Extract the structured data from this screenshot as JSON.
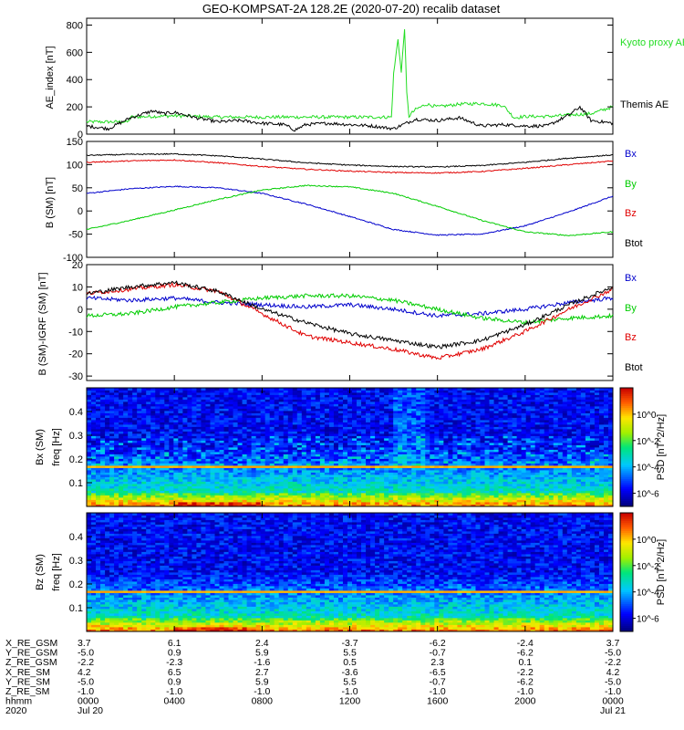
{
  "title": "GEO-KOMPSAT-2A 128.2E (2020-07-20) recalib dataset",
  "colors": {
    "black": "#000000",
    "red": "#e00000",
    "green": "#00cc00",
    "blue": "#0000cc",
    "kyoto": "#22dd22"
  },
  "x_axis": {
    "tick_hours": [
      0,
      4,
      8,
      12,
      16,
      20,
      24
    ],
    "row_labels": [
      "X_RE_GSM",
      "Y_RE_GSM",
      "Z_RE_GSM",
      "X_RE_SM",
      "Y_RE_SM",
      "Z_RE_SM",
      "hhmm",
      "2020"
    ],
    "rows": [
      [
        "3.7",
        "6.1",
        "2.4",
        "-3.7",
        "-6.2",
        "-2.4",
        "3.7"
      ],
      [
        "-5.0",
        "0.9",
        "5.9",
        "5.5",
        "-0.7",
        "-6.2",
        "-5.0"
      ],
      [
        "-2.2",
        "-2.3",
        "-1.6",
        "0.5",
        "2.3",
        "0.1",
        "-2.2"
      ],
      [
        "4.2",
        "6.5",
        "2.7",
        "-3.6",
        "-6.5",
        "-2.2",
        "4.2"
      ],
      [
        "-5.0",
        "0.9",
        "5.9",
        "5.5",
        "-0.7",
        "-6.2",
        "-5.0"
      ],
      [
        "-1.0",
        "-1.0",
        "-1.0",
        "-1.0",
        "-1.0",
        "-1.0",
        "-1.0"
      ],
      [
        "0000",
        "0400",
        "0800",
        "1200",
        "1600",
        "2000",
        "0000"
      ],
      [
        "Jul 20",
        "",
        "",
        "",
        "",
        "",
        "Jul 21"
      ]
    ]
  },
  "chart_data": [
    {
      "type": "line",
      "id": "ae",
      "ylabel": "AE_index [nT]",
      "ylim": [
        0,
        850
      ],
      "yticks": [
        0,
        200,
        400,
        600,
        800
      ],
      "legend": [
        {
          "label": "Kyoto proxy AE",
          "color": "#22dd22"
        },
        {
          "label": "Themis AE",
          "color": "#000000"
        }
      ],
      "series": [
        {
          "name": "Kyoto proxy AE",
          "color": "#22dd22",
          "x": [
            0,
            1,
            1.9,
            2,
            3,
            4,
            5,
            6,
            7,
            8,
            9,
            10,
            11,
            12,
            13,
            13.9,
            14.0,
            14.2,
            14.35,
            14.5,
            14.6,
            14.7,
            14.8,
            15,
            15.5,
            16,
            16.5,
            17,
            18,
            19,
            19.5,
            20,
            21,
            22,
            23,
            24
          ],
          "y": [
            90,
            90,
            90,
            125,
            130,
            135,
            130,
            125,
            125,
            125,
            125,
            125,
            125,
            125,
            125,
            125,
            440,
            700,
            450,
            780,
            300,
            130,
            150,
            180,
            220,
            200,
            210,
            220,
            225,
            210,
            120,
            130,
            130,
            140,
            150,
            200
          ]
        },
        {
          "name": "Themis AE",
          "color": "#000000",
          "x": [
            0,
            1,
            2,
            3,
            3.5,
            4,
            4.5,
            5,
            6,
            7,
            8,
            9,
            9.5,
            10,
            11,
            12,
            13,
            14,
            15,
            16,
            17,
            18,
            19,
            20,
            21,
            22,
            22.5,
            23,
            24
          ],
          "y": [
            60,
            40,
            120,
            170,
            150,
            160,
            140,
            120,
            90,
            100,
            80,
            70,
            30,
            70,
            80,
            70,
            60,
            40,
            110,
            100,
            120,
            60,
            70,
            60,
            60,
            140,
            200,
            100,
            80
          ]
        }
      ]
    },
    {
      "type": "line",
      "id": "bsm",
      "ylabel": "B (SM) [nT]",
      "ylim": [
        -100,
        150
      ],
      "yticks": [
        -100,
        -50,
        0,
        50,
        100,
        150
      ],
      "legend": [
        {
          "label": "Bx",
          "color": "#0000cc"
        },
        {
          "label": "By",
          "color": "#00cc00"
        },
        {
          "label": "Bz",
          "color": "#e00000"
        },
        {
          "label": "Btot",
          "color": "#000000"
        }
      ],
      "series": [
        {
          "name": "Bx",
          "color": "#0000cc",
          "x": [
            0,
            2,
            4,
            6,
            8,
            10,
            12,
            14,
            16,
            18,
            20,
            22,
            24
          ],
          "y": [
            38,
            48,
            53,
            50,
            38,
            15,
            -12,
            -40,
            -52,
            -50,
            -32,
            -2,
            32
          ]
        },
        {
          "name": "By",
          "color": "#00cc00",
          "x": [
            0,
            2,
            4,
            6,
            8,
            10,
            12,
            14,
            16,
            18,
            20,
            22,
            24
          ],
          "y": [
            -40,
            -20,
            2,
            25,
            45,
            55,
            52,
            38,
            10,
            -20,
            -45,
            -53,
            -45
          ]
        },
        {
          "name": "Bz",
          "color": "#e00000",
          "x": [
            0,
            2,
            4,
            6,
            8,
            10,
            12,
            14,
            16,
            18,
            20,
            22,
            24
          ],
          "y": [
            105,
            108,
            110,
            104,
            96,
            90,
            86,
            83,
            82,
            85,
            92,
            100,
            108
          ]
        },
        {
          "name": "Btot",
          "color": "#000000",
          "x": [
            0,
            2,
            4,
            6,
            8,
            10,
            12,
            14,
            16,
            18,
            20,
            22,
            24
          ],
          "y": [
            120,
            122,
            123,
            119,
            112,
            104,
            99,
            96,
            95,
            98,
            105,
            114,
            121
          ]
        }
      ]
    },
    {
      "type": "line",
      "id": "bigrf",
      "ylabel": "B (SM)-IGRF (SM) [nT]",
      "ylim": [
        -32,
        20
      ],
      "yticks": [
        -30,
        -20,
        -10,
        0,
        10,
        20
      ],
      "legend": [
        {
          "label": "Bx",
          "color": "#0000cc"
        },
        {
          "label": "By",
          "color": "#00cc00"
        },
        {
          "label": "Bz",
          "color": "#e00000"
        },
        {
          "label": "Btot",
          "color": "#000000"
        }
      ],
      "series": [
        {
          "name": "Bx",
          "color": "#0000cc",
          "x": [
            0,
            2,
            4,
            6,
            8,
            10,
            12,
            14,
            16,
            18,
            20,
            22,
            24
          ],
          "y": [
            5,
            4,
            5,
            3,
            2,
            1,
            2,
            0,
            -3,
            -2,
            0,
            3,
            5
          ]
        },
        {
          "name": "By",
          "color": "#00cc00",
          "x": [
            0,
            2,
            4,
            6,
            8,
            10,
            12,
            14,
            16,
            18,
            20,
            22,
            24
          ],
          "y": [
            -3,
            -2,
            1,
            3,
            5,
            6,
            6,
            4,
            0,
            -4,
            -6,
            -4,
            -3
          ]
        },
        {
          "name": "Bz",
          "color": "#e00000",
          "x": [
            0,
            2,
            4,
            6,
            8,
            10,
            12,
            14,
            16,
            18,
            20,
            22,
            24
          ],
          "y": [
            7,
            9,
            11,
            8,
            -2,
            -12,
            -15,
            -18,
            -22,
            -18,
            -10,
            0,
            9
          ]
        },
        {
          "name": "Btot",
          "color": "#000000",
          "x": [
            0,
            2,
            4,
            6,
            8,
            10,
            12,
            14,
            16,
            18,
            20,
            22,
            24
          ],
          "y": [
            7,
            10,
            12,
            8,
            0,
            -6,
            -11,
            -14,
            -17,
            -14,
            -7,
            2,
            10
          ]
        }
      ]
    },
    {
      "type": "heatmap",
      "id": "bx-spec",
      "panel_label": "Bx (SM)",
      "ylabel": "freq [Hz]",
      "ylim": [
        0,
        0.5
      ],
      "yticks": [
        0.1,
        0.2,
        0.3,
        0.4
      ],
      "colorbar_label": "PSD [nT^2/Hz]",
      "colorbar_ticks": [
        "10^0",
        "10^-2",
        "10^-4",
        "10^-6"
      ],
      "colorbar_tick_values": [
        0,
        -2,
        -4,
        -6
      ],
      "colorbar_range": [
        -7,
        2
      ],
      "line_freq": 0.167
    },
    {
      "type": "heatmap",
      "id": "bz-spec",
      "panel_label": "Bz (SM)",
      "ylabel": "freq [Hz]",
      "ylim": [
        0,
        0.5
      ],
      "yticks": [
        0.1,
        0.2,
        0.3,
        0.4
      ],
      "colorbar_label": "PSD [nT^2/Hz]",
      "colorbar_ticks": [
        "10^0",
        "10^-2",
        "10^-4",
        "10^-6"
      ],
      "colorbar_tick_values": [
        0,
        -2,
        -4,
        -6
      ],
      "colorbar_range": [
        -7,
        2
      ],
      "line_freq": 0.167
    }
  ]
}
